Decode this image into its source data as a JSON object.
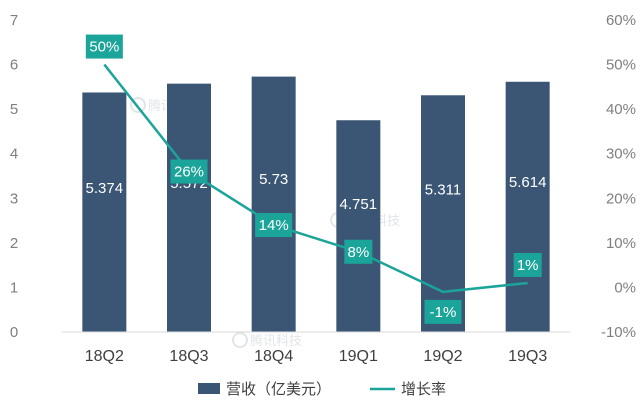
{
  "chart_data": {
    "type": "bar+line",
    "categories": [
      "18Q2",
      "18Q3",
      "18Q4",
      "19Q1",
      "19Q2",
      "19Q3"
    ],
    "series": [
      {
        "name": "营收（亿美元）",
        "type": "bar",
        "axis": "left",
        "values": [
          5.374,
          5.572,
          5.73,
          4.751,
          5.311,
          5.614
        ],
        "labels": [
          "5.374",
          "5.572",
          "5.73",
          "4.751",
          "5.311",
          "5.614"
        ],
        "color": "#3b5675"
      },
      {
        "name": "增长率",
        "type": "line",
        "axis": "right",
        "values": [
          50,
          26,
          14,
          8,
          -1,
          1
        ],
        "labels": [
          "50%",
          "26%",
          "14%",
          "8%",
          "-1%",
          "1%"
        ],
        "color": "#1ba49a"
      }
    ],
    "y_left": {
      "min": 0,
      "max": 7,
      "step": 1,
      "ticks": [
        "0",
        "1",
        "2",
        "3",
        "4",
        "5",
        "6",
        "7"
      ]
    },
    "y_right": {
      "min": -10,
      "max": 60,
      "step": 10,
      "ticks": [
        "-10%",
        "0%",
        "10%",
        "20%",
        "30%",
        "40%",
        "50%",
        "60%"
      ]
    },
    "legend_position": "bottom",
    "grid": false,
    "watermark_text": "腾讯科技"
  }
}
